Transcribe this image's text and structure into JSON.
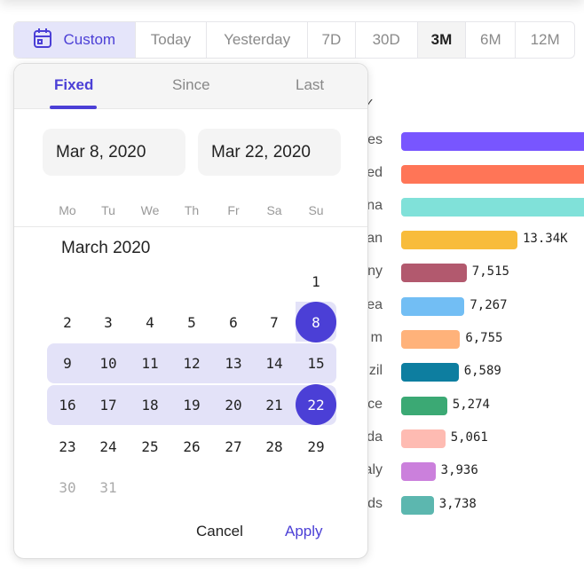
{
  "toolbar": {
    "segments": [
      {
        "label": "Custom",
        "icon": "calendar-icon",
        "state": "custom"
      },
      {
        "label": "Today"
      },
      {
        "label": "Yesterday"
      },
      {
        "label": "7D"
      },
      {
        "label": "30D"
      },
      {
        "label": "3M",
        "state": "active"
      },
      {
        "label": "6M"
      },
      {
        "label": "12M"
      }
    ]
  },
  "picker": {
    "tabs": [
      "Fixed",
      "Since",
      "Last"
    ],
    "active_tab": "Fixed",
    "start_date": "Mar 8, 2020",
    "end_date": "Mar 22, 2020",
    "weekdays": [
      "Mo",
      "Tu",
      "We",
      "Th",
      "Fr",
      "Sa",
      "Su"
    ],
    "month_title": "March 2020",
    "days": [
      "1",
      "2",
      "3",
      "4",
      "5",
      "6",
      "7",
      "8",
      "9",
      "10",
      "11",
      "12",
      "13",
      "14",
      "15",
      "16",
      "17",
      "18",
      "19",
      "20",
      "21",
      "22",
      "23",
      "24",
      "25",
      "26",
      "27",
      "28",
      "29",
      "30",
      "31"
    ],
    "selected": [
      "8",
      "22"
    ],
    "cancel": "Cancel",
    "apply": "Apply"
  },
  "accent": "#4b3fd6",
  "chart_data": {
    "type": "bar",
    "orientation": "horizontal",
    "checkmark": "✓",
    "categories": [
      "es",
      "ed",
      "na",
      "an",
      "ny",
      "ea",
      "m",
      "zil",
      "ce",
      "da",
      "aly",
      "ds"
    ],
    "values": [
      null,
      null,
      null,
      13340,
      7515,
      7267,
      6755,
      6589,
      5274,
      5061,
      3936,
      3738
    ],
    "value_labels": [
      "",
      "",
      "",
      "13.34K",
      "7,515",
      "7,267",
      "6,755",
      "6,589",
      "5,274",
      "5,061",
      "3,936",
      "3,738"
    ],
    "colors": [
      "#7856ff",
      "#ff7557",
      "#80e1d9",
      "#f8bc3b",
      "#b2596e",
      "#72bef4",
      "#ffb27a",
      "#0d7ea0",
      "#3ba974",
      "#febbb2",
      "#cb80dc",
      "#5cb7af"
    ]
  }
}
